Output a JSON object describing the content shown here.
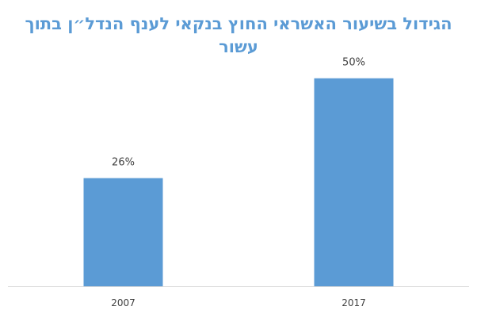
{
  "chart_data": {
    "type": "bar",
    "title": "הגידול בשיעור האשראי החוץ בנקאי לענף הנדל״ן בתוך עשור",
    "categories": [
      "2007",
      "2017"
    ],
    "values": [
      26,
      50
    ],
    "data_labels": [
      "26%",
      "50%"
    ],
    "ylim": [
      0,
      57
    ],
    "grid": false,
    "legend": "none",
    "colors": {
      "bar": "#5b9bd5",
      "title": "#5b9bd5",
      "labels": "#404040",
      "axis": "#d9d9d9"
    }
  }
}
